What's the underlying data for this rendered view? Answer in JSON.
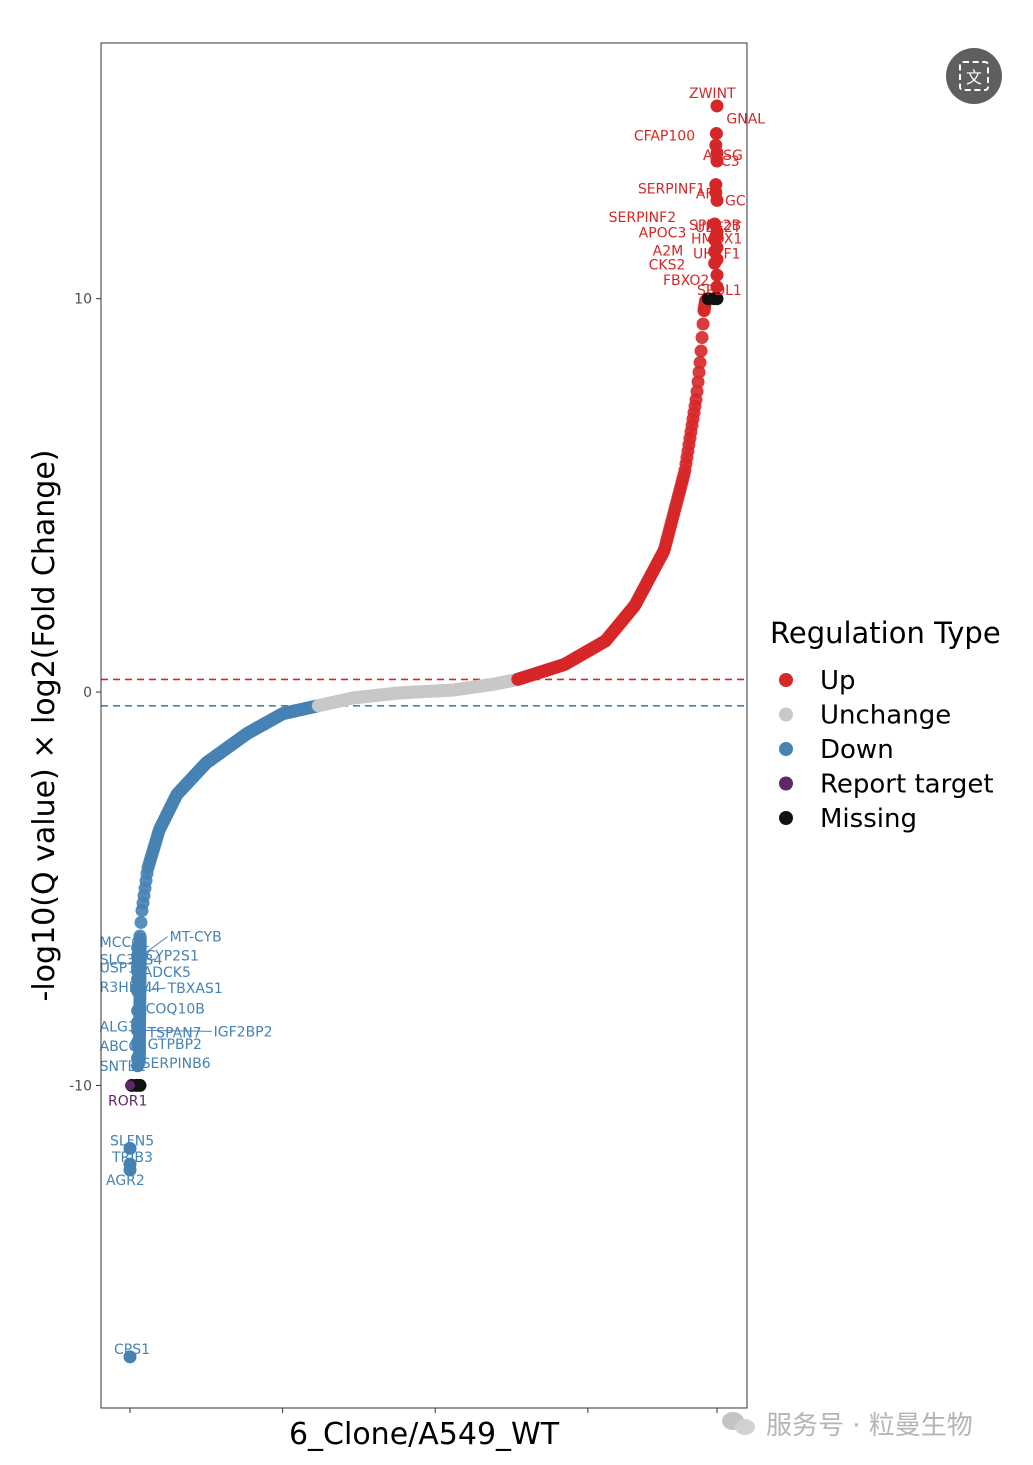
{
  "chart_data": {
    "type": "scatter",
    "ylabel": "-log10(Q value) × log2(Fold Change)",
    "xlabel": "6_Clone/A549_WT",
    "yticks": [
      10,
      0,
      -10
    ],
    "ytick_labels": [
      "10",
      "0",
      "-10"
    ],
    "ylim": [
      -18.2,
      16.5
    ],
    "thresholds": [
      {
        "value": 0.32,
        "color": "#d62728",
        "style": "dashed"
      },
      {
        "value": -0.35,
        "color": "#4682b4",
        "style": "dashed"
      }
    ],
    "curve_anchors": [
      {
        "rank": 0.017,
        "value": -6.2
      },
      {
        "rank": 0.02,
        "value": -5.6
      },
      {
        "rank": 0.03,
        "value": -4.5
      },
      {
        "rank": 0.05,
        "value": -3.5
      },
      {
        "rank": 0.08,
        "value": -2.6
      },
      {
        "rank": 0.13,
        "value": -1.8
      },
      {
        "rank": 0.2,
        "value": -1.05
      },
      {
        "rank": 0.26,
        "value": -0.55
      },
      {
        "rank": 0.32,
        "value": -0.35
      },
      {
        "rank": 0.38,
        "value": -0.15
      },
      {
        "rank": 0.46,
        "value": -0.02
      },
      {
        "rank": 0.55,
        "value": 0.05
      },
      {
        "rank": 0.62,
        "value": 0.2
      },
      {
        "rank": 0.66,
        "value": 0.32
      },
      {
        "rank": 0.74,
        "value": 0.7
      },
      {
        "rank": 0.81,
        "value": 1.3
      },
      {
        "rank": 0.86,
        "value": 2.2
      },
      {
        "rank": 0.91,
        "value": 3.6
      },
      {
        "rank": 0.945,
        "value": 5.6
      },
      {
        "rank": 0.965,
        "value": 7.5
      },
      {
        "rank": 0.972,
        "value": 8.5
      },
      {
        "rank": 0.978,
        "value": 9.7
      }
    ],
    "series": [
      {
        "name": "Up",
        "color": "#d62728"
      },
      {
        "name": "Unchange",
        "color": "#c8c8c8"
      },
      {
        "name": "Down",
        "color": "#4682b4"
      },
      {
        "name": "Report target",
        "color": "#5e2768"
      },
      {
        "name": "Missing",
        "color": "#111111"
      }
    ],
    "legend_title": "Regulation Type",
    "legend_position": "right",
    "missing_points": [
      {
        "rank": 0.985,
        "value": 10.0
      },
      {
        "rank": 0.995,
        "value": 10.0
      },
      {
        "rank": 1.0,
        "value": 10.0
      },
      {
        "rank": 0.003,
        "value": -10.0
      },
      {
        "rank": 0.011,
        "value": -10.0
      },
      {
        "rank": 0.017,
        "value": -10.0
      }
    ],
    "up_points": [
      {
        "gene": "ZWINT",
        "rank": 0.998,
        "value": 14.9
      },
      {
        "gene": "GNAL",
        "rank": 0.998,
        "value": 14.2
      },
      {
        "gene": "CFAP100",
        "rank": 0.998,
        "value": 13.9
      },
      {
        "gene": "AHSG",
        "rank": 0.998,
        "value": 13.7
      },
      {
        "gene": "C3",
        "rank": 0.998,
        "value": 13.5
      },
      {
        "gene": "AFP",
        "rank": 0.998,
        "value": 12.9
      },
      {
        "gene": "SERPINF1",
        "rank": 0.998,
        "value": 12.7
      },
      {
        "gene": "GC",
        "rank": 0.998,
        "value": 12.5
      },
      {
        "gene": "SERPINF2",
        "rank": 0.998,
        "value": 11.9
      },
      {
        "gene": "SPPL2B",
        "rank": 0.998,
        "value": 11.7
      },
      {
        "gene": "UBE2T",
        "rank": 0.998,
        "value": 11.6
      },
      {
        "gene": "APOC3",
        "rank": 0.998,
        "value": 11.5
      },
      {
        "gene": "HMOX1",
        "rank": 0.998,
        "value": 11.3
      },
      {
        "gene": "A2M",
        "rank": 0.998,
        "value": 11.2
      },
      {
        "gene": "UHRF1",
        "rank": 0.998,
        "value": 11.0
      },
      {
        "gene": "CKS2",
        "rank": 0.998,
        "value": 10.9
      },
      {
        "gene": "FBXO2",
        "rank": 0.998,
        "value": 10.6
      },
      {
        "gene": "SPDL1",
        "rank": 0.998,
        "value": 10.3
      }
    ],
    "down_points": [
      {
        "gene": "MCCC1",
        "rank": 0.013,
        "value": -6.5
      },
      {
        "gene": "MT-CYB",
        "rank": 0.013,
        "value": -6.7
      },
      {
        "gene": "SLC35B4",
        "rank": 0.013,
        "value": -6.9
      },
      {
        "gene": "CYP2S1",
        "rank": 0.013,
        "value": -7.0
      },
      {
        "gene": "USP1",
        "rank": 0.013,
        "value": -7.1
      },
      {
        "gene": "ADCK5",
        "rank": 0.013,
        "value": -7.3
      },
      {
        "gene": "R3HDM4",
        "rank": 0.013,
        "value": -7.5
      },
      {
        "gene": "TBXAS1",
        "rank": 0.013,
        "value": -7.6
      },
      {
        "gene": "COQ10B",
        "rank": 0.013,
        "value": -8.1
      },
      {
        "gene": "ALG3",
        "rank": 0.013,
        "value": -8.4
      },
      {
        "gene": "TSPAN7",
        "rank": 0.013,
        "value": -8.5
      },
      {
        "gene": "IGF2BP2",
        "rank": 0.013,
        "value": -8.6
      },
      {
        "gene": "ABCC3",
        "rank": 0.013,
        "value": -8.9
      },
      {
        "gene": "GTPBP2",
        "rank": 0.013,
        "value": -9.0
      },
      {
        "gene": "SERPINB6",
        "rank": 0.013,
        "value": -9.3
      },
      {
        "gene": "SNTB1",
        "rank": 0.013,
        "value": -9.5
      },
      {
        "gene": "SLFN5",
        "rank": 0.0,
        "value": -11.6
      },
      {
        "gene": "TRIB3",
        "rank": 0.0,
        "value": -12.0
      },
      {
        "gene": "AGR2",
        "rank": 0.0,
        "value": -12.15
      },
      {
        "gene": "CPS1",
        "rank": 0.0,
        "value": -16.9
      }
    ],
    "report_target": [
      {
        "gene": "ROR1",
        "rank": 0.0,
        "value": -10.0
      }
    ]
  },
  "overlay": {
    "translate_button_glyph": "文",
    "watermark_text": "服务号 · 粒曼生物"
  }
}
